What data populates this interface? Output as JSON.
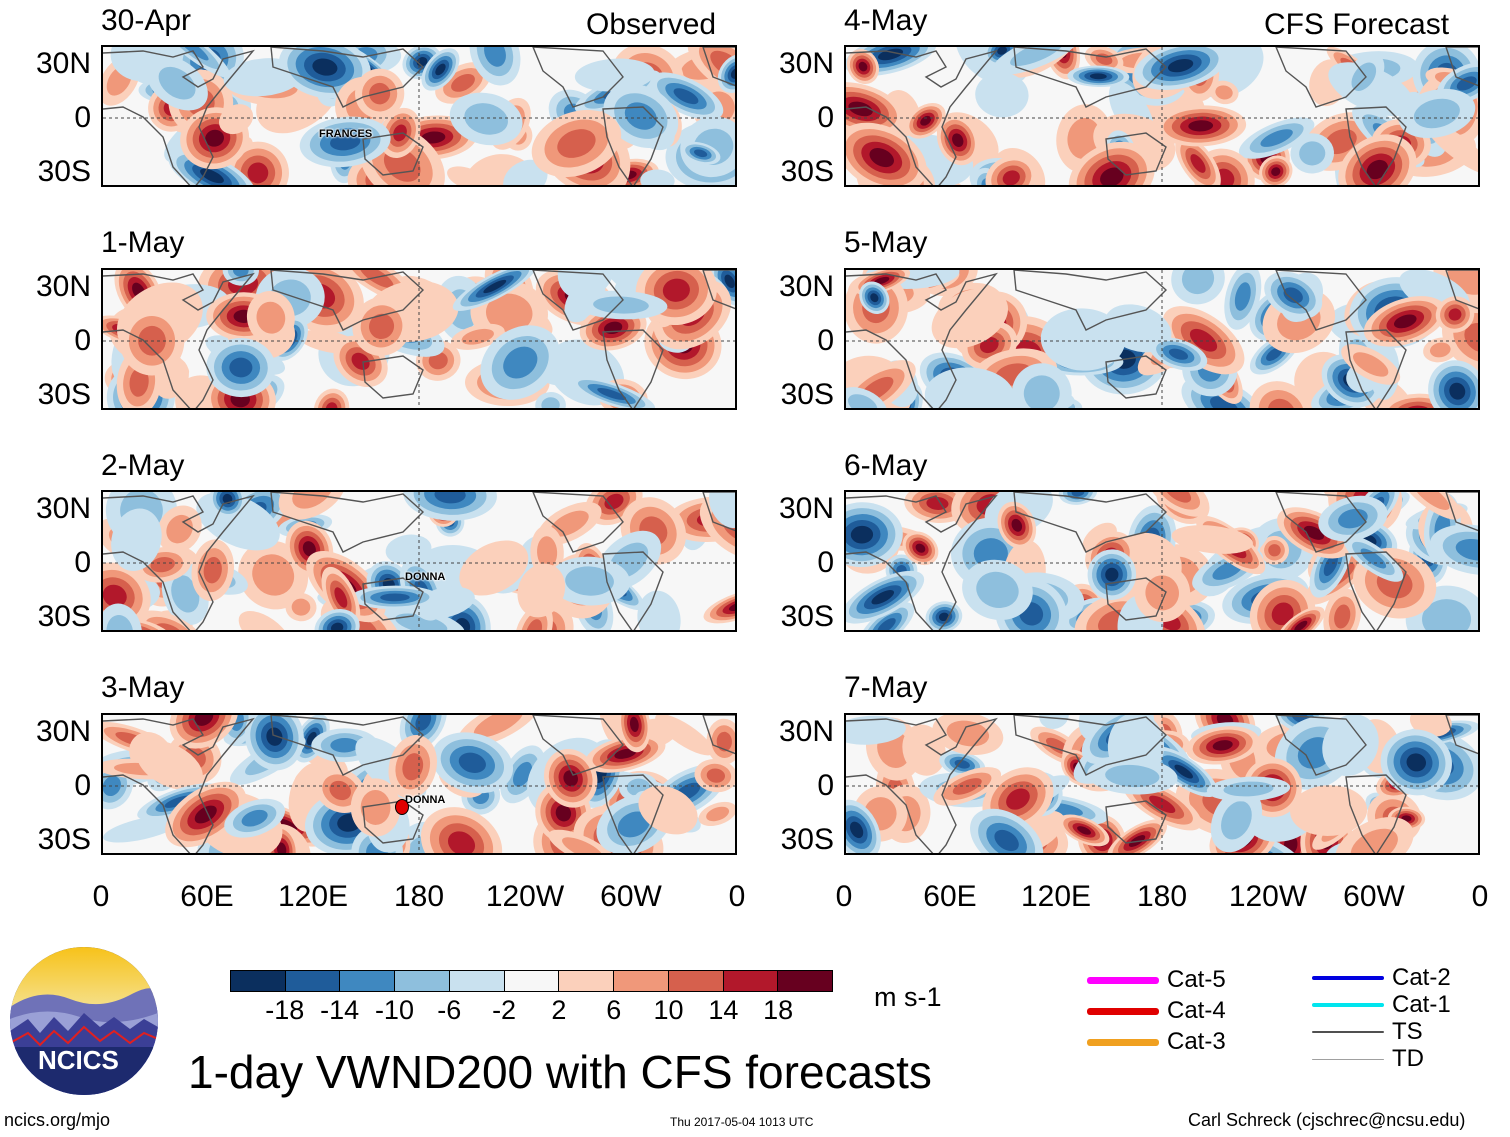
{
  "figure": {
    "title": "1-day VWND200 with CFS forecasts",
    "url": "ncics.org/mjo",
    "timestamp": "Thu 2017-05-04 1013 UTC",
    "author": "Carl Schreck (cjschrec@ncsu.edu)",
    "logo_text": "NCICS",
    "units": "m s-1"
  },
  "columns": {
    "observed_header": "Observed",
    "forecast_header": "CFS Forecast"
  },
  "panels_observed": [
    {
      "date": "30-Apr",
      "storm": "FRANCES"
    },
    {
      "date": "1-May",
      "storm": ""
    },
    {
      "date": "2-May",
      "storm": "DONNA"
    },
    {
      "date": "3-May",
      "storm": "DONNA"
    }
  ],
  "panels_forecast": [
    {
      "date": "4-May"
    },
    {
      "date": "5-May"
    },
    {
      "date": "6-May"
    },
    {
      "date": "7-May"
    }
  ],
  "lat_labels": [
    "30N",
    "0",
    "30S"
  ],
  "lon_labels": [
    "0",
    "60E",
    "120E",
    "180",
    "120W",
    "60W",
    "0"
  ],
  "colorbar": {
    "ticks": [
      "-18",
      "-14",
      "-10",
      "-6",
      "-2",
      "2",
      "6",
      "10",
      "14",
      "18"
    ],
    "colors": [
      "#0b2f5e",
      "#1f5c9a",
      "#3f88c0",
      "#8ebfdd",
      "#c9e1ef",
      "#f7f7f7",
      "#fbd0bb",
      "#f0987a",
      "#d6604d",
      "#b2182b",
      "#67001f"
    ]
  },
  "legend": [
    {
      "label": "Cat-5",
      "color": "#ff00ff",
      "style": "thick"
    },
    {
      "label": "Cat-4",
      "color": "#e00000",
      "style": "thick"
    },
    {
      "label": "Cat-3",
      "color": "#f0a020",
      "style": "thick"
    },
    {
      "label": "Cat-2",
      "color": "#0000e0",
      "style": "medium"
    },
    {
      "label": "Cat-1",
      "color": "#00e5ee",
      "style": "medium"
    },
    {
      "label": "TS",
      "color": "#505050",
      "style": "thin"
    },
    {
      "label": "TD",
      "color": "#a0a0a0",
      "style": "hair"
    }
  ]
}
